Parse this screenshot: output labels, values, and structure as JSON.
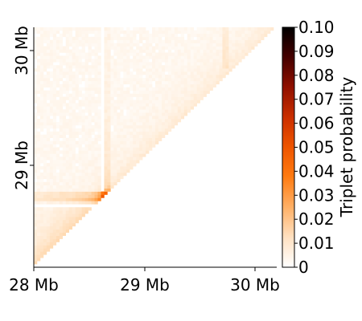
{
  "chart_data": {
    "type": "heatmap",
    "title": "",
    "xlabel": "",
    "ylabel": "",
    "x_ticks": [
      "28 Mb",
      "29 Mb",
      "30 Mb"
    ],
    "y_ticks": [
      "29 Mb",
      "30 Mb"
    ],
    "x_range_mb": [
      28.0,
      30.2
    ],
    "y_range_mb": [
      28.0,
      30.2
    ],
    "matrix": "upper-left triangle of a symmetric triplet-probability map; values near 0 except along a row and column near 28.65 Mb (low) and a hot spot reaching about 0.1 at the diagonal near 28.65 Mb",
    "hotspot_mb": [
      28.65,
      28.65
    ],
    "hotspot_value": 0.1,
    "colorbar": {
      "label": "Triplet probability",
      "min": 0,
      "max": 0.1,
      "ticks": [
        "0",
        "0.01",
        "0.02",
        "0.03",
        "0.04",
        "0.05",
        "0.06",
        "0.07",
        "0.08",
        "0.09",
        "0.10"
      ]
    },
    "colormap": [
      "#ffffff",
      "#ffd9b0",
      "#ff9a3c",
      "#ff6a00",
      "#d93a00",
      "#8a1000",
      "#2a0000",
      "#000000"
    ]
  }
}
